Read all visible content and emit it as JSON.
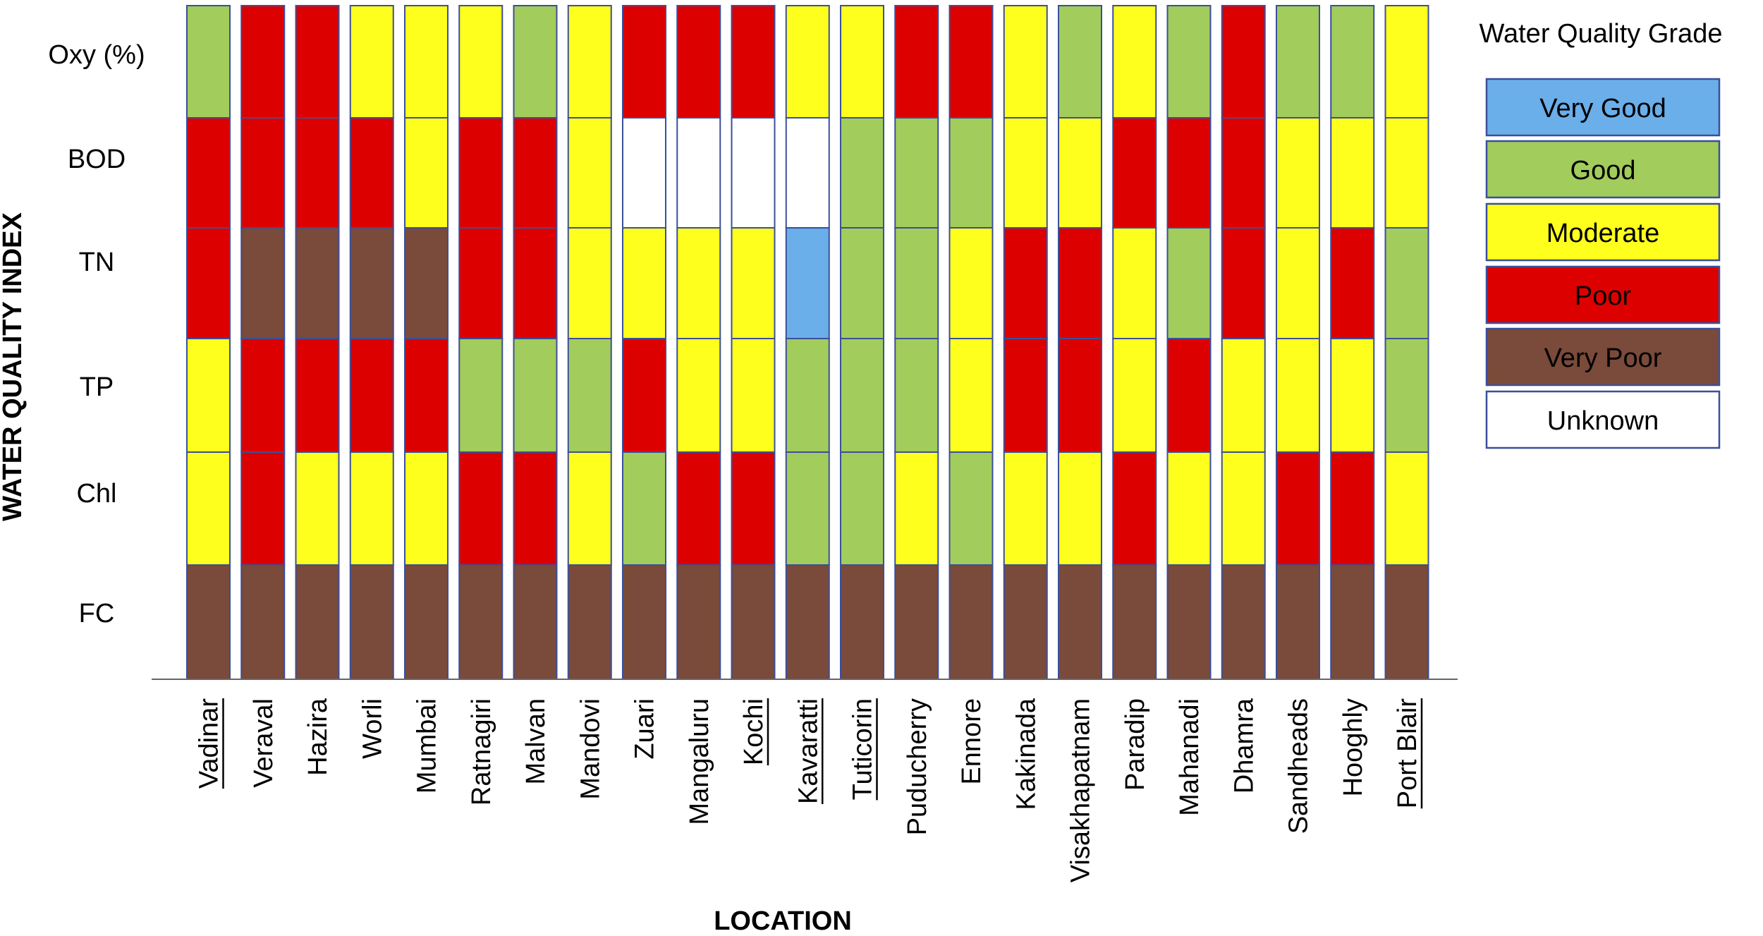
{
  "chart_data": {
    "type": "heatmap",
    "title": "",
    "xlabel": "LOCATION",
    "ylabel": "WATER QUALITY INDEX",
    "rows": [
      "Oxy (%)",
      "BOD",
      "TN",
      "TP",
      "Chl",
      "FC"
    ],
    "locations": [
      {
        "name": "Vadinar",
        "underlined": true
      },
      {
        "name": "Veraval",
        "underlined": false
      },
      {
        "name": "Hazira",
        "underlined": false
      },
      {
        "name": "Worli",
        "underlined": false
      },
      {
        "name": "Mumbai",
        "underlined": false
      },
      {
        "name": "Ratnagiri",
        "underlined": false
      },
      {
        "name": "Malvan",
        "underlined": false
      },
      {
        "name": "Mandovi",
        "underlined": false
      },
      {
        "name": "Zuari",
        "underlined": false
      },
      {
        "name": "Mangaluru",
        "underlined": false
      },
      {
        "name": "Kochi",
        "underlined": true
      },
      {
        "name": "Kavaratti",
        "underlined": true
      },
      {
        "name": "Tuticorin",
        "underlined": true
      },
      {
        "name": "Puducherry",
        "underlined": false
      },
      {
        "name": "Ennore",
        "underlined": false
      },
      {
        "name": "Kakinada",
        "underlined": false
      },
      {
        "name": "Visakhapatnam",
        "underlined": false
      },
      {
        "name": "Paradip",
        "underlined": false
      },
      {
        "name": "Mahanadi",
        "underlined": false
      },
      {
        "name": "Dhamra",
        "underlined": false
      },
      {
        "name": "Sandheads",
        "underlined": false
      },
      {
        "name": "Hooghly",
        "underlined": false
      },
      {
        "name": "Port Blair",
        "underlined": true
      }
    ],
    "grades": [
      [
        "Good",
        "Poor",
        "Poor",
        "Moderate",
        "Moderate",
        "Moderate",
        "Good",
        "Moderate",
        "Poor",
        "Poor",
        "Poor",
        "Moderate",
        "Moderate",
        "Poor",
        "Poor",
        "Moderate",
        "Good",
        "Moderate",
        "Good",
        "Poor",
        "Good",
        "Good",
        "Moderate"
      ],
      [
        "Poor",
        "Poor",
        "Poor",
        "Poor",
        "Moderate",
        "Poor",
        "Poor",
        "Moderate",
        "Unknown",
        "Unknown",
        "Unknown",
        "Unknown",
        "Good",
        "Good",
        "Good",
        "Moderate",
        "Moderate",
        "Poor",
        "Poor",
        "Poor",
        "Moderate",
        "Moderate",
        "Moderate"
      ],
      [
        "Poor",
        "Very Poor",
        "Very Poor",
        "Very Poor",
        "Very Poor",
        "Poor",
        "Poor",
        "Moderate",
        "Moderate",
        "Moderate",
        "Moderate",
        "Very Good",
        "Good",
        "Good",
        "Moderate",
        "Poor",
        "Poor",
        "Moderate",
        "Good",
        "Poor",
        "Moderate",
        "Poor",
        "Good"
      ],
      [
        "Moderate",
        "Poor",
        "Poor",
        "Poor",
        "Poor",
        "Good",
        "Good",
        "Good",
        "Poor",
        "Moderate",
        "Moderate",
        "Good",
        "Good",
        "Good",
        "Moderate",
        "Poor",
        "Poor",
        "Moderate",
        "Poor",
        "Moderate",
        "Moderate",
        "Moderate",
        "Good"
      ],
      [
        "Moderate",
        "Poor",
        "Moderate",
        "Moderate",
        "Moderate",
        "Poor",
        "Poor",
        "Moderate",
        "Good",
        "Poor",
        "Poor",
        "Good",
        "Good",
        "Moderate",
        "Good",
        "Moderate",
        "Moderate",
        "Poor",
        "Moderate",
        "Moderate",
        "Poor",
        "Poor",
        "Moderate"
      ],
      [
        "Very Poor",
        "Very Poor",
        "Very Poor",
        "Very Poor",
        "Very Poor",
        "Very Poor",
        "Very Poor",
        "Very Poor",
        "Very Poor",
        "Very Poor",
        "Very Poor",
        "Very Poor",
        "Very Poor",
        "Very Poor",
        "Very Poor",
        "Very Poor",
        "Very Poor",
        "Very Poor",
        "Very Poor",
        "Very Poor",
        "Very Poor",
        "Very Poor",
        "Very Poor"
      ]
    ],
    "legend": {
      "title": "Water Quality Grade",
      "placement": "right",
      "items": [
        {
          "label": "Very Good",
          "color": "#6aaeea"
        },
        {
          "label": "Good",
          "color": "#a2cc5b"
        },
        {
          "label": "Moderate",
          "color": "#ffff1e"
        },
        {
          "label": "Poor",
          "color": "#dd0000"
        },
        {
          "label": "Very Poor",
          "color": "#7a4a3a"
        },
        {
          "label": "Unknown",
          "color": "#ffffff"
        }
      ]
    }
  }
}
